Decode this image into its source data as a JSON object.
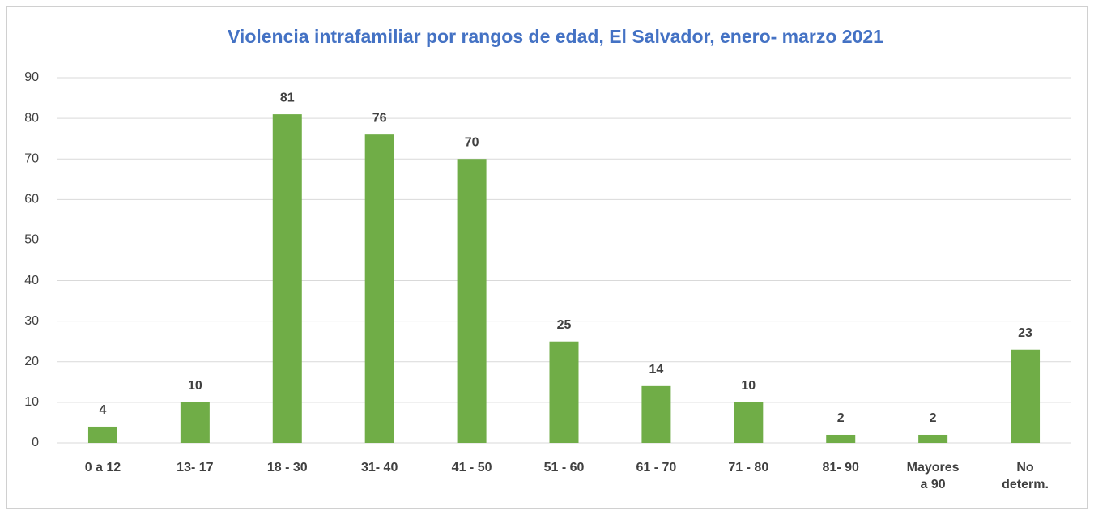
{
  "chart_data": {
    "type": "bar",
    "title": "Violencia intrafamiliar por rangos de edad, El Salvador, enero- marzo 2021",
    "categories": [
      "0 a 12",
      "13- 17",
      "18 - 30",
      "31- 40",
      "41 - 50",
      "51 - 60",
      "61 - 70",
      "71 - 80",
      "81- 90",
      "Mayores a 90",
      "No determ."
    ],
    "values": [
      4,
      10,
      81,
      76,
      70,
      25,
      14,
      10,
      2,
      2,
      23
    ],
    "color": "#70ad47",
    "ylim": [
      0,
      90
    ],
    "yticks": [
      0,
      10,
      20,
      30,
      40,
      50,
      60,
      70,
      80,
      90
    ],
    "grid": true
  }
}
